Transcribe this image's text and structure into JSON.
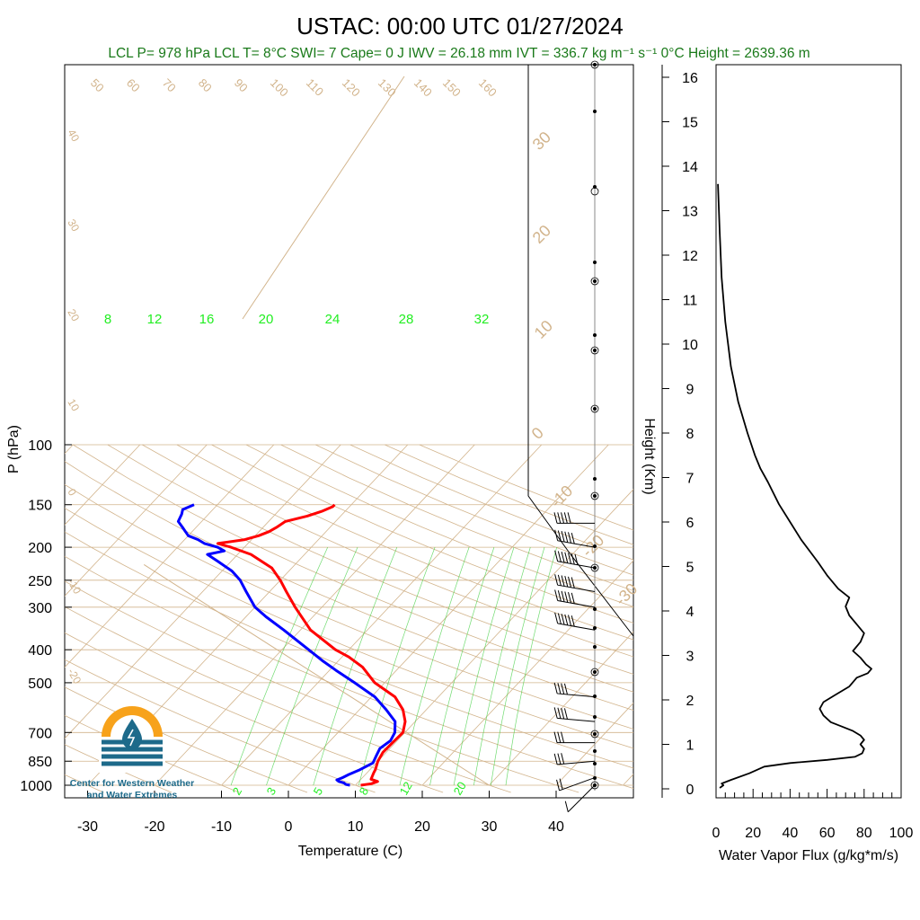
{
  "title": "USTAC: 00:00 UTC 01/27/2024",
  "subtitle": "LCL P= 978 hPa  LCL T= 8°C  SWI= 7  Cape= 0 J  IWV = 26.18 mm  IVT = 336.7 kg m⁻¹ s⁻¹  0°C Height = 2639.36 m",
  "colors": {
    "temperature": "#ff0000",
    "dewpoint": "#0000ff",
    "background_lines": "#d2b48c",
    "mixing_ratio": "#33cc33",
    "subtitle": "#1a7a1a",
    "flux": "#000000"
  },
  "logo": {
    "line1": "Center for Western Weather",
    "line2": "and Water Extremes",
    "icon": "water-drop-sun-icon"
  },
  "chart_data": [
    {
      "type": "line",
      "name": "skew-t-log-p",
      "xlabel": "Temperature (C)",
      "ylabel": "P (hPa)",
      "x_ticks": [
        -30,
        -20,
        -10,
        0,
        10,
        20,
        30,
        40
      ],
      "y_ticks": [
        100,
        150,
        200,
        250,
        300,
        400,
        500,
        700,
        850,
        1000
      ],
      "ylim": [
        1000,
        100
      ],
      "y_scale": "log",
      "isotherm_labels": [
        30,
        20,
        10,
        0,
        -10,
        -20,
        -30
      ],
      "dry_adiabat_labels": [
        50,
        60,
        70,
        80,
        90,
        100,
        110,
        120,
        130,
        140,
        150,
        160
      ],
      "left_edge_labels": [
        40,
        30,
        20,
        10,
        0,
        -10,
        -20
      ],
      "mixing_ratio_labels_top": [
        8,
        12,
        16,
        20,
        24,
        28,
        32
      ],
      "mixing_ratio_labels_bottom": [
        2,
        3,
        5,
        8,
        12,
        20
      ],
      "series": [
        {
          "name": "Temperature",
          "points": [
            [
              10.8,
              1000
            ],
            [
              12.2,
              990
            ],
            [
              12.8,
              975
            ],
            [
              11.5,
              960
            ],
            [
              11.0,
              920
            ],
            [
              10.8,
              900
            ],
            [
              10.0,
              850
            ],
            [
              9.5,
              800
            ],
            [
              9.6,
              750
            ],
            [
              9.7,
              700
            ],
            [
              8.5,
              650
            ],
            [
              6.5,
              600
            ],
            [
              3.5,
              550
            ],
            [
              -1.5,
              500
            ],
            [
              -5.5,
              450
            ],
            [
              -9.0,
              420
            ],
            [
              -12.0,
              400
            ],
            [
              -18.5,
              350
            ],
            [
              -24.0,
              300
            ],
            [
              -27.5,
              270
            ],
            [
              -30.0,
              250
            ],
            [
              -33.0,
              230
            ],
            [
              -38.0,
              210
            ],
            [
              -42.0,
              200
            ],
            [
              -44.5,
              195
            ],
            [
              -41.0,
              190
            ],
            [
              -39.5,
              185
            ],
            [
              -38.5,
              180
            ],
            [
              -38.0,
              175
            ],
            [
              -37.5,
              168
            ],
            [
              -35.0,
              162
            ],
            [
              -33.5,
              157
            ],
            [
              -32.5,
              152
            ],
            [
              -32.5,
              150
            ]
          ]
        },
        {
          "name": "Dewpoint",
          "points": [
            [
              9.2,
              1000
            ],
            [
              8.5,
              995
            ],
            [
              8.0,
              985
            ],
            [
              7.0,
              975
            ],
            [
              6.5,
              965
            ],
            [
              7.0,
              950
            ],
            [
              7.5,
              930
            ],
            [
              8.5,
              900
            ],
            [
              9.5,
              860
            ],
            [
              9.0,
              820
            ],
            [
              8.5,
              780
            ],
            [
              9.0,
              740
            ],
            [
              8.5,
              700
            ],
            [
              7.0,
              650
            ],
            [
              4.0,
              600
            ],
            [
              0.5,
              550
            ],
            [
              -4.5,
              500
            ],
            [
              -9.0,
              460
            ],
            [
              -12.5,
              430
            ],
            [
              -16.0,
              400
            ],
            [
              -22.5,
              350
            ],
            [
              -27.0,
              320
            ],
            [
              -30.0,
              300
            ],
            [
              -33.5,
              270
            ],
            [
              -36.0,
              250
            ],
            [
              -38.5,
              235
            ],
            [
              -42.0,
              220
            ],
            [
              -44.5,
              210
            ],
            [
              -42.5,
              205
            ],
            [
              -44.0,
              200
            ],
            [
              -46.5,
              195
            ],
            [
              -48.0,
              190
            ],
            [
              -50.0,
              185
            ],
            [
              -51.0,
              180
            ],
            [
              -52.0,
              175
            ],
            [
              -53.5,
              168
            ],
            [
              -54.0,
              160
            ],
            [
              -54.5,
              155
            ],
            [
              -53.5,
              150
            ]
          ]
        }
      ],
      "wind_barbs": [
        {
          "p": 1000,
          "speed": 10,
          "dir": 225
        },
        {
          "p": 950,
          "speed": 15,
          "dir": 250
        },
        {
          "p": 850,
          "speed": 25,
          "dir": 265
        },
        {
          "p": 750,
          "speed": 30,
          "dir": 270
        },
        {
          "p": 650,
          "speed": 35,
          "dir": 275
        },
        {
          "p": 550,
          "speed": 40,
          "dir": 275
        },
        {
          "p": 350,
          "speed": 55,
          "dir": 280
        },
        {
          "p": 300,
          "speed": 60,
          "dir": 280
        },
        {
          "p": 270,
          "speed": 60,
          "dir": 280
        },
        {
          "p": 230,
          "speed": 65,
          "dir": 280
        },
        {
          "p": 200,
          "speed": 60,
          "dir": 280
        },
        {
          "p": 170,
          "speed": 50,
          "dir": 270
        }
      ]
    },
    {
      "type": "line",
      "name": "water-vapor-flux-profile",
      "xlabel": "Water Vapor Flux (g/kg*m/s)",
      "ylabel": "Height (Km)",
      "xlim": [
        0,
        100
      ],
      "ylim": [
        0,
        16
      ],
      "x_ticks": [
        0,
        20,
        40,
        60,
        80,
        100
      ],
      "y_ticks": [
        0,
        1,
        2,
        3,
        4,
        5,
        6,
        7,
        8,
        9,
        10,
        11,
        12,
        13,
        14,
        15,
        16
      ],
      "points": [
        [
          2,
          0.02
        ],
        [
          4,
          0.08
        ],
        [
          3,
          0.12
        ],
        [
          8,
          0.2
        ],
        [
          18,
          0.35
        ],
        [
          26,
          0.5
        ],
        [
          40,
          0.58
        ],
        [
          60,
          0.65
        ],
        [
          75,
          0.72
        ],
        [
          79,
          0.8
        ],
        [
          80,
          0.9
        ],
        [
          78,
          1.0
        ],
        [
          80,
          1.1
        ],
        [
          78,
          1.2
        ],
        [
          74,
          1.3
        ],
        [
          68,
          1.4
        ],
        [
          62,
          1.5
        ],
        [
          58,
          1.65
        ],
        [
          56,
          1.8
        ],
        [
          58,
          1.95
        ],
        [
          64,
          2.1
        ],
        [
          72,
          2.3
        ],
        [
          76,
          2.5
        ],
        [
          82,
          2.6
        ],
        [
          84,
          2.7
        ],
        [
          81,
          2.8
        ],
        [
          78,
          2.95
        ],
        [
          74,
          3.1
        ],
        [
          78,
          3.3
        ],
        [
          80,
          3.5
        ],
        [
          76,
          3.7
        ],
        [
          72,
          3.9
        ],
        [
          70,
          4.1
        ],
        [
          72,
          4.3
        ],
        [
          66,
          4.5
        ],
        [
          60,
          4.8
        ],
        [
          55,
          5.1
        ],
        [
          46,
          5.6
        ],
        [
          40,
          6.0
        ],
        [
          34,
          6.4
        ],
        [
          28,
          6.9
        ],
        [
          24,
          7.2
        ],
        [
          21,
          7.5
        ],
        [
          17,
          8.0
        ],
        [
          12,
          8.7
        ],
        [
          8,
          9.5
        ],
        [
          5,
          10.5
        ],
        [
          3,
          11.5
        ],
        [
          2,
          12.5
        ],
        [
          1,
          13.6
        ]
      ]
    }
  ]
}
